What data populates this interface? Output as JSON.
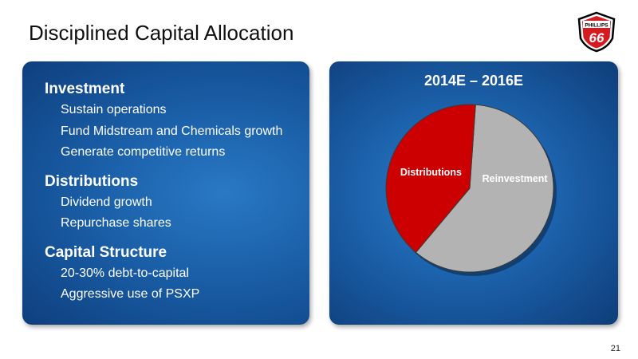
{
  "slide": {
    "title": "Disciplined Capital Allocation",
    "page_number": "21"
  },
  "logo": {
    "text_top": "PHILLIPS",
    "text_number": "66",
    "colors": {
      "fill": "#d71920",
      "outline": "#000000"
    }
  },
  "sections": [
    {
      "heading": "Investment",
      "bullets": [
        "Sustain operations",
        "Fund Midstream and Chemicals growth",
        "Generate competitive returns"
      ]
    },
    {
      "heading": "Distributions",
      "bullets": [
        "Dividend growth",
        "Repurchase shares"
      ]
    },
    {
      "heading": "Capital Structure",
      "bullets": [
        "20-30% debt-to-capital",
        "Aggressive use of PSXP"
      ]
    }
  ],
  "chart_data": {
    "type": "pie",
    "title": "2014E – 2016E",
    "slices": [
      {
        "label": "Distributions",
        "value": 40,
        "color": "#cc0000"
      },
      {
        "label": "Reinvestment",
        "value": 60,
        "color": "#b3b3b3"
      }
    ],
    "legend": "none"
  }
}
